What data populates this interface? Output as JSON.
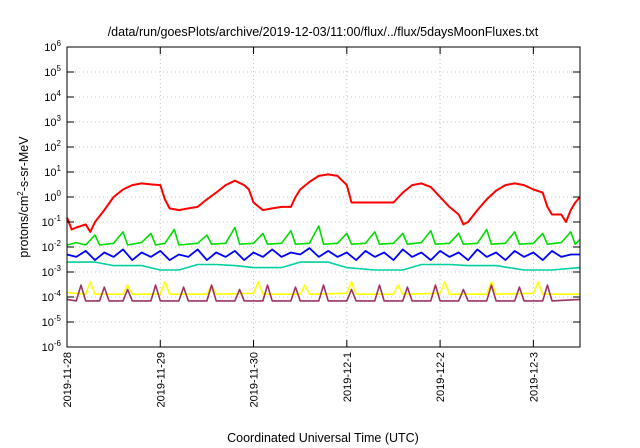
{
  "chart_data": {
    "type": "line",
    "title": "/data/run/goesPlots/archive/2019-12-03/11:00/flux/../flux/5daysMoonFluxes.txt",
    "xlabel": "Coordinated Universal Time (UTC)",
    "ylabel": {
      "pre": "protons/cm",
      "sup": "2",
      "post": "-s-sr-MeV"
    },
    "yscale": "log",
    "ylim_exp": [
      -6,
      6
    ],
    "xlim_days": [
      0,
      5.5
    ],
    "grid": true,
    "legend": "none",
    "x_ticks": [
      {
        "day": 0,
        "label": "2019-11-28"
      },
      {
        "day": 1,
        "label": "2019-11-29"
      },
      {
        "day": 2,
        "label": "2019-11-30"
      },
      {
        "day": 3,
        "label": "2019-12-1"
      },
      {
        "day": 4,
        "label": "2019-12-2"
      },
      {
        "day": 5,
        "label": "2019-12-3"
      }
    ],
    "y_ticks": [
      {
        "exp": 6,
        "base": "10",
        "sup": "6"
      },
      {
        "exp": 5,
        "base": "10",
        "sup": "5"
      },
      {
        "exp": 4,
        "base": "10",
        "sup": "4"
      },
      {
        "exp": 3,
        "base": "10",
        "sup": "3"
      },
      {
        "exp": 2,
        "base": "10",
        "sup": "2"
      },
      {
        "exp": 1,
        "base": "10",
        "sup": "1"
      },
      {
        "exp": 0,
        "base": "10",
        "sup": "0"
      },
      {
        "exp": -1,
        "base": "10",
        "sup": "-1"
      },
      {
        "exp": -2,
        "base": "10",
        "sup": "-2"
      },
      {
        "exp": -3,
        "base": "10",
        "sup": "-3"
      },
      {
        "exp": -4,
        "base": "10",
        "sup": "-4"
      },
      {
        "exp": -5,
        "base": "10",
        "sup": "-5"
      },
      {
        "exp": -6,
        "base": "10",
        "sup": "-6"
      }
    ],
    "series": [
      {
        "color": "#00dd00",
        "width": 1.6,
        "values": [
          [
            0,
            0.012
          ],
          [
            0.1,
            0.015
          ],
          [
            0.2,
            0.012
          ],
          [
            0.3,
            0.03
          ],
          [
            0.35,
            0.012
          ],
          [
            0.5,
            0.014
          ],
          [
            0.6,
            0.04
          ],
          [
            0.65,
            0.012
          ],
          [
            0.8,
            0.015
          ],
          [
            0.9,
            0.035
          ],
          [
            0.95,
            0.012
          ],
          [
            1.05,
            0.014
          ],
          [
            1.15,
            0.05
          ],
          [
            1.2,
            0.012
          ],
          [
            1.4,
            0.014
          ],
          [
            1.5,
            0.03
          ],
          [
            1.55,
            0.013
          ],
          [
            1.7,
            0.014
          ],
          [
            1.8,
            0.06
          ],
          [
            1.85,
            0.013
          ],
          [
            2.0,
            0.014
          ],
          [
            2.1,
            0.035
          ],
          [
            2.15,
            0.013
          ],
          [
            2.3,
            0.014
          ],
          [
            2.4,
            0.045
          ],
          [
            2.45,
            0.013
          ],
          [
            2.6,
            0.014
          ],
          [
            2.7,
            0.07
          ],
          [
            2.75,
            0.013
          ],
          [
            2.9,
            0.014
          ],
          [
            3.0,
            0.035
          ],
          [
            3.05,
            0.013
          ],
          [
            3.2,
            0.014
          ],
          [
            3.3,
            0.04
          ],
          [
            3.35,
            0.013
          ],
          [
            3.5,
            0.014
          ],
          [
            3.6,
            0.035
          ],
          [
            3.65,
            0.013
          ],
          [
            3.8,
            0.015
          ],
          [
            3.9,
            0.045
          ],
          [
            3.95,
            0.013
          ],
          [
            4.1,
            0.014
          ],
          [
            4.2,
            0.035
          ],
          [
            4.25,
            0.013
          ],
          [
            4.4,
            0.014
          ],
          [
            4.5,
            0.05
          ],
          [
            4.55,
            0.013
          ],
          [
            4.7,
            0.014
          ],
          [
            4.8,
            0.04
          ],
          [
            4.85,
            0.013
          ],
          [
            5.0,
            0.014
          ],
          [
            5.1,
            0.035
          ],
          [
            5.15,
            0.013
          ],
          [
            5.3,
            0.015
          ],
          [
            5.4,
            0.04
          ],
          [
            5.45,
            0.013
          ],
          [
            5.5,
            0.02
          ]
        ]
      },
      {
        "color": "#00d0a0",
        "width": 1.6,
        "values": [
          [
            0,
            0.0025
          ],
          [
            0.3,
            0.0025
          ],
          [
            0.5,
            0.0018
          ],
          [
            0.8,
            0.0018
          ],
          [
            1.0,
            0.0012
          ],
          [
            1.2,
            0.0012
          ],
          [
            1.4,
            0.002
          ],
          [
            1.6,
            0.002
          ],
          [
            1.8,
            0.0018
          ],
          [
            2.0,
            0.0015
          ],
          [
            2.3,
            0.0015
          ],
          [
            2.5,
            0.0025
          ],
          [
            2.8,
            0.0025
          ],
          [
            3.0,
            0.0015
          ],
          [
            3.3,
            0.0012
          ],
          [
            3.6,
            0.0012
          ],
          [
            3.8,
            0.002
          ],
          [
            4.1,
            0.002
          ],
          [
            4.3,
            0.0018
          ],
          [
            4.6,
            0.0018
          ],
          [
            4.9,
            0.0012
          ],
          [
            5.2,
            0.0012
          ],
          [
            5.5,
            0.0015
          ]
        ]
      },
      {
        "color": "#0000ff",
        "width": 1.8,
        "values": [
          [
            0,
            0.005
          ],
          [
            0.1,
            0.004
          ],
          [
            0.2,
            0.007
          ],
          [
            0.3,
            0.003
          ],
          [
            0.4,
            0.006
          ],
          [
            0.5,
            0.004
          ],
          [
            0.6,
            0.008
          ],
          [
            0.7,
            0.003
          ],
          [
            0.8,
            0.006
          ],
          [
            0.9,
            0.004
          ],
          [
            1.0,
            0.007
          ],
          [
            1.1,
            0.003
          ],
          [
            1.2,
            0.005
          ],
          [
            1.3,
            0.004
          ],
          [
            1.4,
            0.008
          ],
          [
            1.5,
            0.003
          ],
          [
            1.6,
            0.006
          ],
          [
            1.7,
            0.004
          ],
          [
            1.8,
            0.007
          ],
          [
            1.9,
            0.003
          ],
          [
            2.0,
            0.006
          ],
          [
            2.1,
            0.004
          ],
          [
            2.2,
            0.008
          ],
          [
            2.3,
            0.004
          ],
          [
            2.4,
            0.006
          ],
          [
            2.5,
            0.005
          ],
          [
            2.6,
            0.009
          ],
          [
            2.7,
            0.004
          ],
          [
            2.8,
            0.007
          ],
          [
            2.9,
            0.004
          ],
          [
            3.0,
            0.006
          ],
          [
            3.1,
            0.003
          ],
          [
            3.2,
            0.007
          ],
          [
            3.3,
            0.004
          ],
          [
            3.4,
            0.006
          ],
          [
            3.5,
            0.003
          ],
          [
            3.6,
            0.008
          ],
          [
            3.7,
            0.004
          ],
          [
            3.8,
            0.006
          ],
          [
            3.9,
            0.003
          ],
          [
            4.0,
            0.007
          ],
          [
            4.1,
            0.004
          ],
          [
            4.2,
            0.006
          ],
          [
            4.3,
            0.003
          ],
          [
            4.4,
            0.008
          ],
          [
            4.5,
            0.004
          ],
          [
            4.6,
            0.006
          ],
          [
            4.7,
            0.003
          ],
          [
            4.8,
            0.007
          ],
          [
            4.9,
            0.004
          ],
          [
            5.0,
            0.006
          ],
          [
            5.1,
            0.003
          ],
          [
            5.2,
            0.007
          ],
          [
            5.3,
            0.004
          ],
          [
            5.4,
            0.005
          ],
          [
            5.5,
            0.005
          ]
        ]
      },
      {
        "color": "#ffff00",
        "width": 1.6,
        "values": [
          [
            0,
            0.00015
          ],
          [
            0.2,
            0.00013
          ],
          [
            0.25,
            0.0004
          ],
          [
            0.3,
            0.00013
          ],
          [
            0.6,
            0.00013
          ],
          [
            0.65,
            0.0003
          ],
          [
            0.7,
            0.00013
          ],
          [
            1.0,
            0.00013
          ],
          [
            1.05,
            0.0004
          ],
          [
            1.1,
            0.00013
          ],
          [
            1.5,
            0.00013
          ],
          [
            1.55,
            0.0003
          ],
          [
            1.6,
            0.00013
          ],
          [
            2.0,
            0.00014
          ],
          [
            2.05,
            0.0004
          ],
          [
            2.1,
            0.00013
          ],
          [
            2.5,
            0.00013
          ],
          [
            2.55,
            0.0003
          ],
          [
            2.6,
            0.00013
          ],
          [
            3.0,
            0.00014
          ],
          [
            3.05,
            0.0004
          ],
          [
            3.1,
            0.00013
          ],
          [
            3.5,
            0.00013
          ],
          [
            3.55,
            0.0003
          ],
          [
            3.6,
            0.00013
          ],
          [
            4.0,
            0.00014
          ],
          [
            4.05,
            0.0004
          ],
          [
            4.1,
            0.00013
          ],
          [
            4.5,
            0.00013
          ],
          [
            4.55,
            0.0004
          ],
          [
            4.6,
            0.00013
          ],
          [
            5.0,
            0.00014
          ],
          [
            5.05,
            0.0004
          ],
          [
            5.1,
            0.00013
          ],
          [
            5.5,
            0.00013
          ]
        ]
      },
      {
        "color": "#993366",
        "width": 1.6,
        "values": [
          [
            0,
            8e-05
          ],
          [
            0.1,
            7e-05
          ],
          [
            0.15,
            0.0003
          ],
          [
            0.2,
            7e-05
          ],
          [
            0.35,
            7e-05
          ],
          [
            0.4,
            0.00025
          ],
          [
            0.45,
            7e-05
          ],
          [
            0.6,
            7e-05
          ],
          [
            0.65,
            0.0002
          ],
          [
            0.7,
            7e-05
          ],
          [
            0.9,
            7e-05
          ],
          [
            0.95,
            0.0003
          ],
          [
            1.0,
            7e-05
          ],
          [
            1.2,
            7e-05
          ],
          [
            1.25,
            0.00025
          ],
          [
            1.3,
            7e-05
          ],
          [
            1.5,
            7e-05
          ],
          [
            1.55,
            0.0003
          ],
          [
            1.6,
            7e-05
          ],
          [
            1.8,
            7e-05
          ],
          [
            1.85,
            0.0002
          ],
          [
            1.9,
            7e-05
          ],
          [
            2.1,
            7e-05
          ],
          [
            2.15,
            0.0003
          ],
          [
            2.2,
            7e-05
          ],
          [
            2.4,
            7e-05
          ],
          [
            2.45,
            0.00025
          ],
          [
            2.5,
            7e-05
          ],
          [
            2.7,
            7e-05
          ],
          [
            2.75,
            0.0003
          ],
          [
            2.8,
            7e-05
          ],
          [
            3.0,
            7e-05
          ],
          [
            3.05,
            0.0002
          ],
          [
            3.1,
            7e-05
          ],
          [
            3.3,
            7e-05
          ],
          [
            3.35,
            0.0003
          ],
          [
            3.4,
            7e-05
          ],
          [
            3.6,
            7e-05
          ],
          [
            3.65,
            0.00025
          ],
          [
            3.7,
            7e-05
          ],
          [
            3.9,
            7e-05
          ],
          [
            3.95,
            0.0003
          ],
          [
            4.0,
            7e-05
          ],
          [
            4.2,
            7e-05
          ],
          [
            4.25,
            0.0002
          ],
          [
            4.3,
            7e-05
          ],
          [
            4.5,
            7e-05
          ],
          [
            4.55,
            0.0003
          ],
          [
            4.6,
            7e-05
          ],
          [
            4.8,
            7e-05
          ],
          [
            4.85,
            0.00025
          ],
          [
            4.9,
            7e-05
          ],
          [
            5.1,
            7e-05
          ],
          [
            5.15,
            0.0003
          ],
          [
            5.2,
            7e-05
          ],
          [
            5.5,
            8e-05
          ]
        ]
      },
      {
        "color": "#ff0000",
        "width": 2.0,
        "values": [
          [
            0,
            0.15
          ],
          [
            0.05,
            0.05
          ],
          [
            0.1,
            0.06
          ],
          [
            0.2,
            0.08
          ],
          [
            0.25,
            0.04
          ],
          [
            0.3,
            0.1
          ],
          [
            0.4,
            0.3
          ],
          [
            0.5,
            1.0
          ],
          [
            0.6,
            2.0
          ],
          [
            0.7,
            3.0
          ],
          [
            0.8,
            3.5
          ],
          [
            0.9,
            3.2
          ],
          [
            1.0,
            3.0
          ],
          [
            1.05,
            0.8
          ],
          [
            1.1,
            0.35
          ],
          [
            1.2,
            0.3
          ],
          [
            1.3,
            0.35
          ],
          [
            1.4,
            0.4
          ],
          [
            1.5,
            0.8
          ],
          [
            1.6,
            1.5
          ],
          [
            1.7,
            3.0
          ],
          [
            1.8,
            4.5
          ],
          [
            1.9,
            3.0
          ],
          [
            1.95,
            2.0
          ],
          [
            2.0,
            0.6
          ],
          [
            2.1,
            0.3
          ],
          [
            2.2,
            0.35
          ],
          [
            2.3,
            0.4
          ],
          [
            2.4,
            0.4
          ],
          [
            2.45,
            1.0
          ],
          [
            2.5,
            2.0
          ],
          [
            2.6,
            4.0
          ],
          [
            2.7,
            7.0
          ],
          [
            2.8,
            8.0
          ],
          [
            2.9,
            7.0
          ],
          [
            3.0,
            3.0
          ],
          [
            3.05,
            0.6
          ],
          [
            3.1,
            0.6
          ],
          [
            3.3,
            0.6
          ],
          [
            3.4,
            0.6
          ],
          [
            3.5,
            0.6
          ],
          [
            3.6,
            1.5
          ],
          [
            3.7,
            3.0
          ],
          [
            3.8,
            3.5
          ],
          [
            3.9,
            2.5
          ],
          [
            4.0,
            1.0
          ],
          [
            4.1,
            0.4
          ],
          [
            4.2,
            0.2
          ],
          [
            4.25,
            0.08
          ],
          [
            4.3,
            0.1
          ],
          [
            4.4,
            0.3
          ],
          [
            4.5,
            0.8
          ],
          [
            4.6,
            1.8
          ],
          [
            4.7,
            3.0
          ],
          [
            4.8,
            3.5
          ],
          [
            4.9,
            3.0
          ],
          [
            5.0,
            2.0
          ],
          [
            5.1,
            1.5
          ],
          [
            5.15,
            0.4
          ],
          [
            5.2,
            0.2
          ],
          [
            5.3,
            0.2
          ],
          [
            5.35,
            0.1
          ],
          [
            5.4,
            0.3
          ],
          [
            5.45,
            0.6
          ],
          [
            5.5,
            1.0
          ]
        ]
      }
    ]
  }
}
